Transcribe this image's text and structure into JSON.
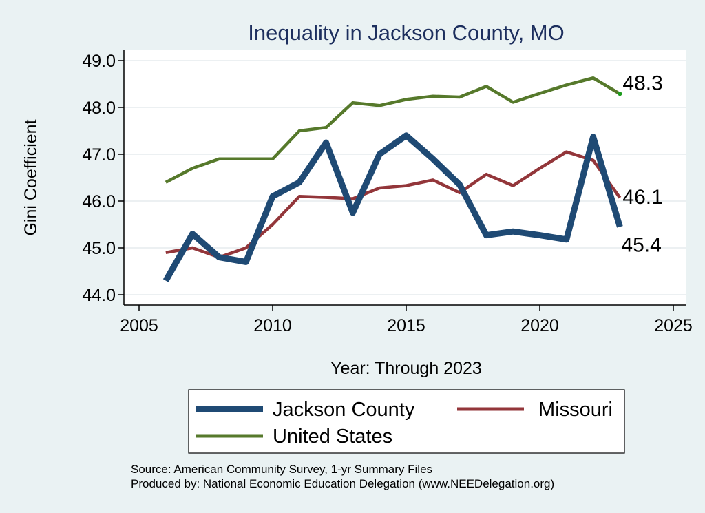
{
  "chart_data": {
    "type": "line",
    "title": "Inequality in Jackson County, MO",
    "xlabel": "Year: Through 2023",
    "ylabel": "Gini Coefficient",
    "xlim": [
      2005,
      2025
    ],
    "ylim": [
      44.0,
      49.0
    ],
    "grid": true,
    "x_ticks": [
      2005,
      2010,
      2015,
      2020,
      2025
    ],
    "x_tick_labels": [
      "2005",
      "2010",
      "2015",
      "2020",
      "2025"
    ],
    "y_ticks": [
      44.0,
      45.0,
      46.0,
      47.0,
      48.0,
      49.0
    ],
    "y_tick_labels": [
      "44.0",
      "45.0",
      "46.0",
      "47.0",
      "48.0",
      "49.0"
    ],
    "series": [
      {
        "name": "Jackson County",
        "color": "#1f4a74",
        "end_label": "45.4",
        "x": [
          2006,
          2007,
          2008,
          2009,
          2010,
          2011,
          2012,
          2013,
          2014,
          2015,
          2016,
          2017,
          2018,
          2019,
          2020,
          2021,
          2022,
          2023
        ],
        "values": [
          44.3,
          45.3,
          44.8,
          44.7,
          46.1,
          46.4,
          47.25,
          45.75,
          47.0,
          47.4,
          46.9,
          46.35,
          45.27,
          45.35,
          45.27,
          45.18,
          47.37,
          45.45
        ]
      },
      {
        "name": "Missouri",
        "color": "#93363a",
        "end_label": "46.1",
        "x": [
          2006,
          2007,
          2008,
          2009,
          2010,
          2011,
          2012,
          2013,
          2014,
          2015,
          2016,
          2017,
          2018,
          2019,
          2020,
          2021,
          2022,
          2023
        ],
        "values": [
          44.9,
          45.0,
          44.8,
          45.0,
          45.5,
          46.1,
          46.08,
          46.05,
          46.28,
          46.33,
          46.45,
          46.18,
          46.57,
          46.33,
          46.7,
          47.05,
          46.87,
          46.07
        ]
      },
      {
        "name": "United States",
        "color": "#56792b",
        "end_label": "48.3",
        "x": [
          2006,
          2007,
          2008,
          2009,
          2010,
          2011,
          2012,
          2013,
          2014,
          2015,
          2016,
          2017,
          2018,
          2019,
          2020,
          2021,
          2022,
          2023
        ],
        "values": [
          46.4,
          46.7,
          46.9,
          46.9,
          46.9,
          47.5,
          47.57,
          48.1,
          48.04,
          48.17,
          48.24,
          48.22,
          48.45,
          48.11,
          48.3,
          48.48,
          48.63,
          48.29
        ]
      }
    ],
    "legend": {
      "position": "bottom",
      "entries": [
        "Jackson County",
        "Missouri",
        "United States"
      ]
    },
    "notes": [
      "Source: American Community Survey, 1-yr Summary Files",
      "Produced by: National Economic Education Delegation (www.NEEDelegation.org)"
    ]
  }
}
